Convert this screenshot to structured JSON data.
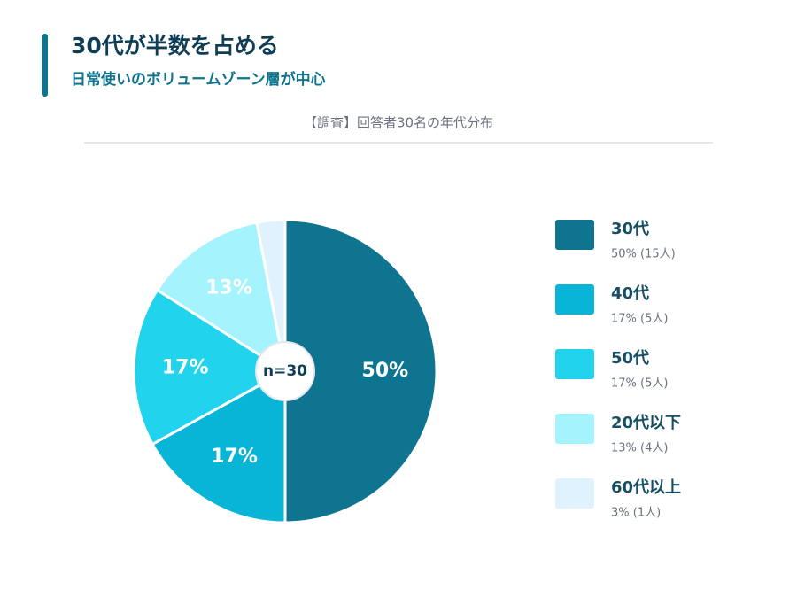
{
  "header": {
    "title": "30代が半数を占める",
    "subtitle": "日常使いのボリュームゾーン層が中心"
  },
  "chart_data": {
    "type": "pie",
    "title": "【調査】回答者30名の年代分布",
    "center_label": "n=30",
    "categories": [
      "30代",
      "40代",
      "50代",
      "20代以下",
      "60代以上"
    ],
    "values": [
      50,
      17,
      17,
      13,
      3
    ],
    "value_labels": [
      "50%",
      "17%",
      "17%",
      "13%",
      null
    ],
    "colors": [
      "#0f7490",
      "#08b5d6",
      "#22d3ee",
      "#a5f3fc",
      "#e0f2fe"
    ],
    "legend_details": [
      "50% (15人)",
      "17% (5人)",
      "17% (5人)",
      "13% (4人)",
      "3% (1人)"
    ],
    "legend": "right"
  }
}
